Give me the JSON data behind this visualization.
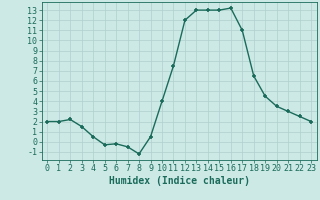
{
  "x": [
    0,
    1,
    2,
    3,
    4,
    5,
    6,
    7,
    8,
    9,
    10,
    11,
    12,
    13,
    14,
    15,
    16,
    17,
    18,
    19,
    20,
    21,
    22,
    23
  ],
  "y": [
    2,
    2,
    2.2,
    1.5,
    0.5,
    -0.3,
    -0.2,
    -0.5,
    -1.2,
    0.5,
    4,
    7.5,
    12,
    13,
    13,
    13,
    13.2,
    11,
    6.5,
    4.5,
    3.5,
    3,
    2.5,
    2
  ],
  "line_color": "#1a6b5a",
  "marker": "+",
  "markersize": 3.5,
  "xlabel": "Humidex (Indice chaleur)",
  "ylabel_ticks": [
    -1,
    0,
    1,
    2,
    3,
    4,
    5,
    6,
    7,
    8,
    9,
    10,
    11,
    12,
    13
  ],
  "xlim": [
    -0.5,
    23.5
  ],
  "ylim": [
    -1.8,
    13.8
  ],
  "bg_color": "#cce9e6",
  "grid_color": "#b0d0cd",
  "tick_color": "#1a6b5a",
  "xlabel_fontsize": 7,
  "tick_fontsize": 6,
  "linewidth": 1.0,
  "marker_color": "#1a6b5a"
}
